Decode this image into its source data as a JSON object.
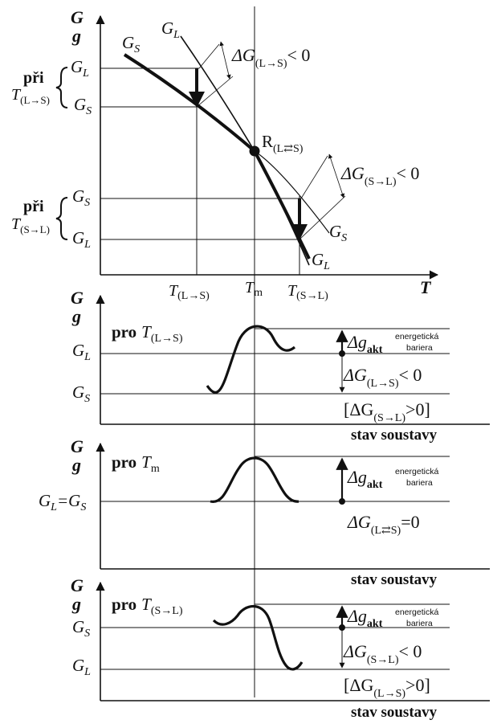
{
  "panel_top": {
    "axis_y": {
      "G": "G",
      "g": "g"
    },
    "axis_x": "T",
    "curve_labels": {
      "gs_start": "G",
      "gs_sub": "S",
      "gl_start": "G",
      "gl_sub": "L",
      "gs_end": "G",
      "gs_end_sub": "S",
      "gl_end": "G",
      "gl_end_sub": "L"
    },
    "delta_top": {
      "prefix": "ΔG",
      "sub": "(L→S)",
      "suffix": "< 0"
    },
    "delta_bottom": {
      "prefix": "ΔG",
      "sub": "(S→L)",
      "suffix": "< 0"
    },
    "point_R": {
      "label": "R",
      "sub": "(L⇄S)"
    },
    "left_group_1": {
      "pri": "při",
      "T": "T",
      "sub": "(L→S)",
      "upper": "G",
      "upper_sub": "L",
      "lower": "G",
      "lower_sub": "S"
    },
    "left_group_2": {
      "pri": "při",
      "T": "T",
      "sub": "(S→L)",
      "upper": "G",
      "upper_sub": "S",
      "lower": "G",
      "lower_sub": "L"
    },
    "ticks": [
      {
        "T": "T",
        "sub": "(L→S)"
      },
      {
        "T": "T",
        "sub": "m"
      },
      {
        "T": "T",
        "sub": "(S→L)"
      }
    ]
  },
  "panel_1": {
    "axis_y": {
      "G": "G",
      "g": "g"
    },
    "title": {
      "pro": "pro",
      "T": "T",
      "sub": "(L→S)"
    },
    "levels": {
      "upper": "G",
      "upper_sub": "L",
      "lower": "G",
      "lower_sub": "S"
    },
    "barrier": {
      "prefix": "Δg",
      "sub": "akt",
      "note1": "energetická",
      "note2": "bariera"
    },
    "delta": {
      "prefix": "ΔG",
      "sub": "(L→S)",
      "suffix": "< 0"
    },
    "reverse": {
      "open": "[ΔG",
      "sub": "(S→L)",
      "close": ">0]"
    },
    "axis_x": "stav soustavy"
  },
  "panel_2": {
    "axis_y": {
      "G": "G",
      "g": "g"
    },
    "title": {
      "pro": "pro",
      "T": "T",
      "sub": "m"
    },
    "levels": {
      "a": "G",
      "a_sub": "L",
      "eq": "=",
      "b": "G",
      "b_sub": "S"
    },
    "barrier": {
      "prefix": "Δg",
      "sub": "akt",
      "note1": "energetická",
      "note2": "bariera"
    },
    "delta": {
      "prefix": "ΔG",
      "sub": "(L⇄S)",
      "suffix": "=0"
    },
    "axis_x": "stav soustavy"
  },
  "panel_3": {
    "axis_y": {
      "G": "G",
      "g": "g"
    },
    "title": {
      "pro": "pro",
      "T": "T",
      "sub": "(S→L)"
    },
    "levels": {
      "upper": "G",
      "upper_sub": "S",
      "lower": "G",
      "lower_sub": "L"
    },
    "barrier": {
      "prefix": "Δg",
      "sub": "akt",
      "note1": "energetická",
      "note2": "bariera"
    },
    "delta": {
      "prefix": "ΔG",
      "sub": "(S→L)",
      "suffix": "< 0"
    },
    "reverse": {
      "open": "[ΔG",
      "sub": "(L→S)",
      "close": ">0]"
    },
    "axis_x": "stav soustavy"
  }
}
